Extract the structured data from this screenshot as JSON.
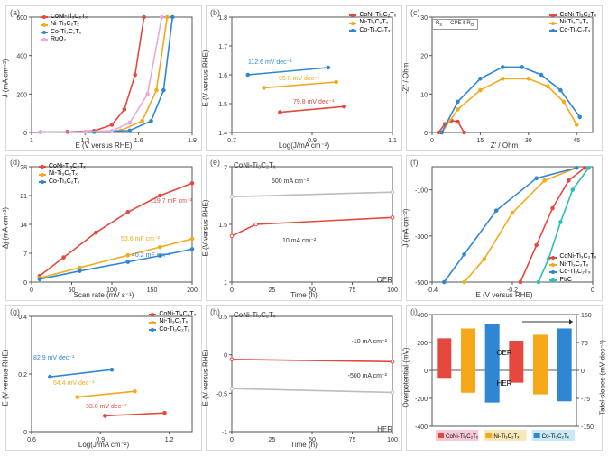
{
  "colors": {
    "CoNi": "#e6483f",
    "Ni": "#f5a91a",
    "Co": "#2f87d3",
    "RuO2": "#e8a8dd",
    "PtC": "#2ebfb5",
    "grey": "#bdbdbd",
    "red_open": "#e6483f"
  },
  "series_labels": {
    "CoNi": "CoNi-Ti₃C₂Tₓ",
    "Ni": "Ni-Ti₃C₂Tₓ",
    "Co": "Co-Ti₃C₂Tₓ",
    "RuO2": "RuO₂",
    "PtC": "Pt/C"
  },
  "a": {
    "tag": "(a)",
    "type": "line",
    "xlabel": "E (V versus RHE)",
    "ylabel": "J (mA cm⁻²)",
    "xlim": [
      1.0,
      1.9
    ],
    "xtick_step": 0.3,
    "ylim": [
      0,
      600
    ],
    "ytick_step": 200,
    "series": {
      "CoNi": [
        [
          1.05,
          2
        ],
        [
          1.2,
          3
        ],
        [
          1.35,
          8
        ],
        [
          1.45,
          40
        ],
        [
          1.52,
          120
        ],
        [
          1.58,
          300
        ],
        [
          1.63,
          600
        ]
      ],
      "Ni": [
        [
          1.05,
          2
        ],
        [
          1.3,
          3
        ],
        [
          1.5,
          10
        ],
        [
          1.62,
          60
        ],
        [
          1.7,
          220
        ],
        [
          1.76,
          600
        ]
      ],
      "Co": [
        [
          1.05,
          2
        ],
        [
          1.35,
          3
        ],
        [
          1.55,
          10
        ],
        [
          1.67,
          60
        ],
        [
          1.74,
          220
        ],
        [
          1.79,
          600
        ]
      ],
      "RuO2": [
        [
          1.05,
          2
        ],
        [
          1.3,
          3
        ],
        [
          1.45,
          8
        ],
        [
          1.55,
          50
        ],
        [
          1.65,
          200
        ],
        [
          1.73,
          600
        ]
      ]
    }
  },
  "b": {
    "tag": "(b)",
    "type": "line",
    "xlabel": "Log(J/mA cm⁻²)",
    "ylabel": "E (V versus RHE)",
    "xlim": [
      0.7,
      1.1
    ],
    "xtick_step": 0.2,
    "ylim": [
      1.4,
      1.8
    ],
    "annot": {
      "CoNi": "79.8 mV dec⁻¹",
      "Ni": "95.8 mV dec⁻¹",
      "Co": "112.6 mV dec⁻¹"
    },
    "series": {
      "CoNi": [
        [
          0.82,
          1.47
        ],
        [
          0.98,
          1.49
        ]
      ],
      "Ni": [
        [
          0.78,
          1.555
        ],
        [
          0.96,
          1.575
        ]
      ],
      "Co": [
        [
          0.74,
          1.6
        ],
        [
          0.94,
          1.625
        ]
      ]
    }
  },
  "c": {
    "tag": "(c)",
    "type": "line",
    "xlabel": "Z' / Ohm",
    "ylabel": "-Z'' / Ohm",
    "xlim": [
      0,
      50
    ],
    "xtick_step": 15,
    "ylim": [
      0,
      30
    ],
    "ytick_step": 10,
    "inset_label": "Rs  CPE  Rct",
    "series": {
      "CoNi": [
        [
          2,
          0
        ],
        [
          4,
          2.2
        ],
        [
          6,
          3.1
        ],
        [
          8,
          2.8
        ],
        [
          10,
          0
        ]
      ],
      "Ni": [
        [
          3,
          0
        ],
        [
          8,
          6
        ],
        [
          15,
          11
        ],
        [
          22,
          14
        ],
        [
          30,
          14
        ],
        [
          36,
          12
        ],
        [
          41,
          8
        ],
        [
          45,
          2
        ]
      ],
      "Co": [
        [
          3,
          0
        ],
        [
          8,
          8
        ],
        [
          15,
          14
        ],
        [
          22,
          17
        ],
        [
          28,
          17
        ],
        [
          34,
          15
        ],
        [
          40,
          11
        ],
        [
          46,
          4
        ]
      ]
    }
  },
  "d": {
    "tag": "(d)",
    "type": "line",
    "xlabel": "Scan rate (mV s⁻¹)",
    "ylabel": "Δj (mA cm⁻²)",
    "xlim": [
      0,
      200
    ],
    "xtick_step": 50,
    "ylim": [
      0,
      28
    ],
    "annot": {
      "CoNi": "119.7 mF cm⁻²",
      "Ni": "53.6 mF cm⁻²",
      "Co": "40.2 mF cm⁻²"
    },
    "series": {
      "CoNi": [
        [
          10,
          1.5
        ],
        [
          40,
          6
        ],
        [
          80,
          12
        ],
        [
          120,
          17
        ],
        [
          160,
          21
        ],
        [
          200,
          24
        ]
      ],
      "Ni": [
        [
          10,
          1
        ],
        [
          60,
          3.5
        ],
        [
          120,
          6.5
        ],
        [
          160,
          8.5
        ],
        [
          200,
          10.5
        ]
      ],
      "Co": [
        [
          10,
          0.7
        ],
        [
          60,
          2.7
        ],
        [
          120,
          4.9
        ],
        [
          160,
          6.4
        ],
        [
          200,
          8
        ]
      ]
    }
  },
  "e": {
    "tag": "(e)",
    "type": "line",
    "xlabel": "Time (h)",
    "ylabel": "E (V versus RHE)",
    "xlim": [
      0,
      100
    ],
    "xtick_step": 25,
    "ylim": [
      1.0,
      2.0
    ],
    "ytick_step": 0.5,
    "title": "CoNi-Ti₃C₂Tₓ",
    "corner": "OER",
    "annot": {
      "top": "500 mA cm⁻²",
      "bot": "10 mA cm⁻²"
    },
    "series": {
      "grey": [
        [
          0,
          1.74
        ],
        [
          100,
          1.78
        ]
      ],
      "red_open": [
        [
          0,
          1.4
        ],
        [
          15,
          1.5
        ],
        [
          100,
          1.56
        ]
      ]
    }
  },
  "f": {
    "tag": "(f)",
    "type": "line",
    "xlabel": "E (V versus RHE)",
    "ylabel": "J (mA cm⁻²)",
    "xlim": [
      -0.4,
      0.0
    ],
    "xtick_step": 0.2,
    "ylim": [
      -500,
      0
    ],
    "ytick_step": 200,
    "series": {
      "CoNi": [
        [
          -0.02,
          -5
        ],
        [
          -0.06,
          -60
        ],
        [
          -0.1,
          -180
        ],
        [
          -0.14,
          -340
        ],
        [
          -0.18,
          -500
        ]
      ],
      "Ni": [
        [
          -0.04,
          -5
        ],
        [
          -0.12,
          -60
        ],
        [
          -0.2,
          -200
        ],
        [
          -0.27,
          -400
        ],
        [
          -0.32,
          -500
        ]
      ],
      "Co": [
        [
          -0.04,
          -5
        ],
        [
          -0.14,
          -50
        ],
        [
          -0.24,
          -190
        ],
        [
          -0.32,
          -380
        ],
        [
          -0.37,
          -500
        ]
      ],
      "PtC": [
        [
          -0.01,
          -5
        ],
        [
          -0.05,
          -100
        ],
        [
          -0.08,
          -240
        ],
        [
          -0.11,
          -400
        ],
        [
          -0.135,
          -500
        ]
      ]
    }
  },
  "g": {
    "tag": "(g)",
    "type": "line",
    "xlabel": "Log(J/mA cm⁻²)",
    "ylabel": "E (V versus RHE)",
    "xlim": [
      0.6,
      1.3
    ],
    "xtick_step": 0.3,
    "ylim": [
      0.0,
      0.4
    ],
    "ytick_step": 0.2,
    "annot": {
      "Co": "82.9 mV dec⁻¹",
      "Ni": "64.4 mV dec⁻¹",
      "CoNi": "33.0 mV dec⁻¹"
    },
    "series": {
      "CoNi": [
        [
          0.92,
          0.055
        ],
        [
          1.18,
          0.065
        ]
      ],
      "Ni": [
        [
          0.8,
          0.12
        ],
        [
          1.05,
          0.14
        ]
      ],
      "Co": [
        [
          0.68,
          0.19
        ],
        [
          0.95,
          0.215
        ]
      ]
    }
  },
  "h": {
    "tag": "(h)",
    "type": "line",
    "xlabel": "Time (h)",
    "ylabel": "E (V versus RHE)",
    "xlim": [
      0,
      100
    ],
    "xtick_step": 25,
    "ylim": [
      -1.0,
      0.5
    ],
    "ytick_step": 0.5,
    "title": "CoNi-Ti₃C₂Tₓ",
    "corner": "HER",
    "annot": {
      "top": "-10 mA cm⁻²",
      "bot": "-500 mA cm⁻²"
    },
    "series": {
      "red_open": [
        [
          0,
          -0.06
        ],
        [
          100,
          -0.09
        ]
      ],
      "grey": [
        [
          0,
          -0.44
        ],
        [
          100,
          -0.49
        ]
      ]
    }
  },
  "i": {
    "tag": "(i)",
    "type": "bar",
    "xlabel": "",
    "ylabel": "Overpotential (mV)",
    "ylabel2": "Tafel slopes (mV dec⁻¹)",
    "ylim": [
      -400,
      400
    ],
    "ytick_step": 200,
    "ylim2": [
      -150,
      150
    ],
    "groups": [
      "OER",
      "HER"
    ],
    "categories": [
      "CoNi",
      "Ni",
      "Co"
    ],
    "oer_overpotential": [
      230,
      300,
      330
    ],
    "her_overpotential": [
      -60,
      -160,
      -230
    ],
    "oer_tafel": [
      79.8,
      95.8,
      112.6
    ],
    "her_tafel": [
      -33.0,
      -64.4,
      -82.9
    ],
    "text": {
      "oer": "OER",
      "her": "HER"
    },
    "legend_bg": [
      "#f6c9d7",
      "#f6e8b8",
      "#c9e9f6"
    ]
  }
}
